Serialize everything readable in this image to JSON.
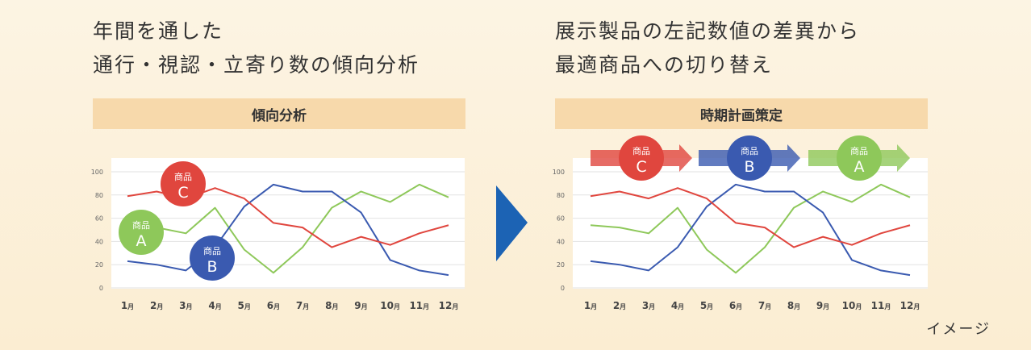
{
  "left": {
    "headline_line1": "年間を通した",
    "headline_line2": "通行・視認・立寄り数の傾向分析",
    "band_title": "傾向分析"
  },
  "right": {
    "headline_line1": "展示製品の左記数値の差異から",
    "headline_line2": "最適商品への切り替え",
    "band_title": "時期計画策定"
  },
  "caption": "イメージ",
  "next_icon": "chevron-right-icon",
  "chart_data": [
    {
      "type": "line",
      "title": "傾向分析",
      "categories": [
        "1月",
        "2月",
        "3月",
        "4月",
        "5月",
        "6月",
        "7月",
        "8月",
        "9月",
        "10月",
        "11月",
        "12月"
      ],
      "month_numbers": [
        "1",
        "2",
        "3",
        "4",
        "5",
        "6",
        "7",
        "8",
        "9",
        "10",
        "11",
        "12"
      ],
      "month_suffix": "月",
      "ylim": [
        0,
        100
      ],
      "yticks": [
        "0",
        "20",
        "40",
        "60",
        "80",
        "100"
      ],
      "grid": true,
      "series": [
        {
          "name": "商品C",
          "line1": "商品",
          "line2": "C",
          "color": "#e0463e",
          "values": [
            79,
            83,
            77,
            86,
            77,
            56,
            52,
            35,
            44,
            37,
            47,
            54
          ]
        },
        {
          "name": "商品B",
          "line1": "商品",
          "line2": "B",
          "color": "#3a5ab0",
          "values": [
            23,
            20,
            15,
            35,
            70,
            89,
            83,
            83,
            65,
            24,
            15,
            11
          ]
        },
        {
          "name": "商品A",
          "line1": "商品",
          "line2": "A",
          "color": "#8ec85a",
          "values": [
            54,
            52,
            47,
            69,
            33,
            13,
            35,
            69,
            83,
            74,
            89,
            78
          ]
        }
      ]
    },
    {
      "type": "line",
      "title": "時期計画策定",
      "categories": [
        "1月",
        "2月",
        "3月",
        "4月",
        "5月",
        "6月",
        "7月",
        "8月",
        "9月",
        "10月",
        "11月",
        "12月"
      ],
      "month_numbers": [
        "1",
        "2",
        "3",
        "4",
        "5",
        "6",
        "7",
        "8",
        "9",
        "10",
        "11",
        "12"
      ],
      "month_suffix": "月",
      "ylim": [
        0,
        100
      ],
      "yticks": [
        "0",
        "20",
        "40",
        "60",
        "80",
        "100"
      ],
      "grid": true,
      "series": [
        {
          "name": "商品C",
          "line1": "商品",
          "line2": "C",
          "color": "#e0463e",
          "values": [
            79,
            83,
            77,
            86,
            77,
            56,
            52,
            35,
            44,
            37,
            47,
            54
          ]
        },
        {
          "name": "商品B",
          "line1": "商品",
          "line2": "B",
          "color": "#3a5ab0",
          "values": [
            23,
            20,
            15,
            35,
            70,
            89,
            83,
            83,
            65,
            24,
            15,
            11
          ]
        },
        {
          "name": "商品A",
          "line1": "商品",
          "line2": "A",
          "color": "#8ec85a",
          "values": [
            54,
            52,
            47,
            69,
            33,
            13,
            35,
            69,
            83,
            74,
            89,
            78
          ]
        }
      ]
    }
  ]
}
